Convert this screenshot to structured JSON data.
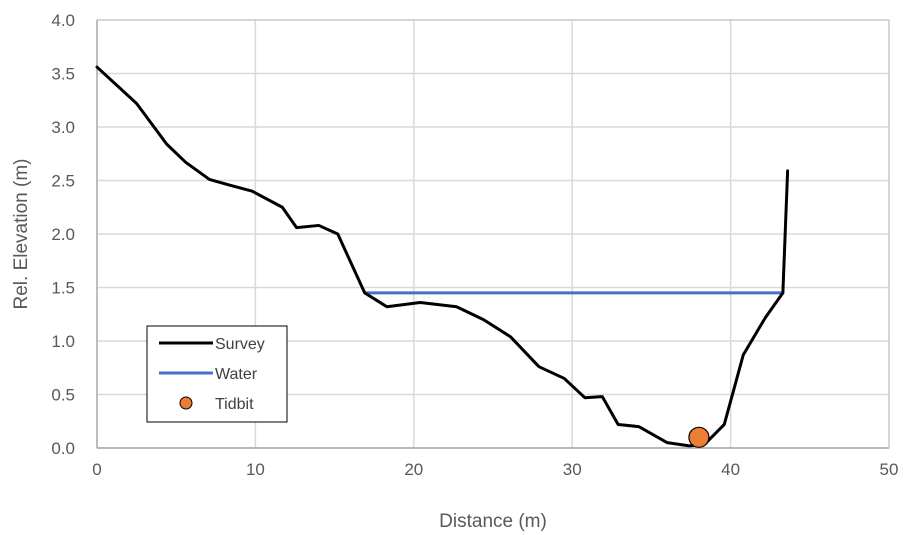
{
  "chart_data": {
    "type": "line",
    "xlabel": "Distance (m)",
    "ylabel": "Rel. Elevation (m)",
    "xlim": [
      0,
      50
    ],
    "ylim": [
      0,
      4.0
    ],
    "x_ticks": [
      "0",
      "10",
      "20",
      "30",
      "40",
      "50"
    ],
    "y_ticks": [
      "0.0",
      "0.5",
      "1.0",
      "1.5",
      "2.0",
      "2.5",
      "3.0",
      "3.5",
      "4.0"
    ],
    "grid": true,
    "legend_position": "bottom-left",
    "series": [
      {
        "name": "Survey",
        "type": "line",
        "color": "#000000",
        "points": [
          [
            0,
            3.56
          ],
          [
            2.5,
            3.22
          ],
          [
            4.4,
            2.84
          ],
          [
            5.6,
            2.67
          ],
          [
            7.1,
            2.51
          ],
          [
            8.3,
            2.46
          ],
          [
            9.8,
            2.4
          ],
          [
            11.7,
            2.25
          ],
          [
            12.6,
            2.06
          ],
          [
            14.0,
            2.08
          ],
          [
            15.2,
            2.0
          ],
          [
            16.9,
            1.45
          ],
          [
            18.3,
            1.32
          ],
          [
            20.4,
            1.36
          ],
          [
            22.7,
            1.32
          ],
          [
            24.4,
            1.2
          ],
          [
            26.1,
            1.04
          ],
          [
            27.9,
            0.76
          ],
          [
            29.5,
            0.65
          ],
          [
            30.8,
            0.47
          ],
          [
            31.9,
            0.48
          ],
          [
            32.9,
            0.22
          ],
          [
            34.2,
            0.2
          ],
          [
            36.0,
            0.05
          ],
          [
            37.4,
            0.02
          ],
          [
            38.4,
            0.04
          ],
          [
            39.6,
            0.22
          ],
          [
            40.8,
            0.87
          ],
          [
            42.2,
            1.22
          ],
          [
            43.3,
            1.45
          ],
          [
            43.6,
            2.59
          ]
        ]
      },
      {
        "name": "Water",
        "type": "line",
        "color": "#4472C4",
        "points": [
          [
            16.9,
            1.45
          ],
          [
            43.3,
            1.45
          ]
        ]
      },
      {
        "name": "Tidbit",
        "type": "scatter",
        "color": "#ED7D31",
        "points": [
          [
            38.0,
            0.1
          ]
        ]
      }
    ]
  }
}
